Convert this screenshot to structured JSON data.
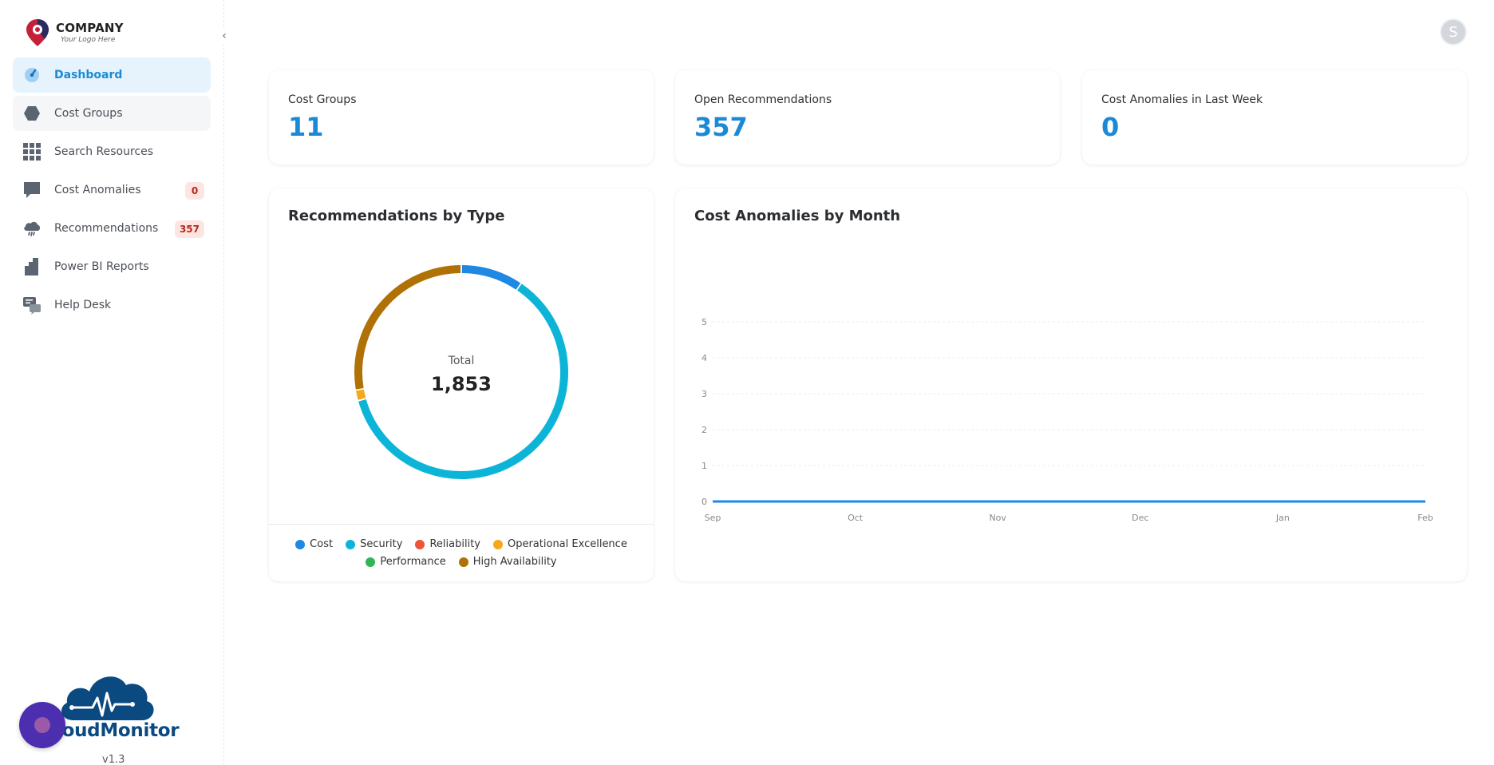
{
  "logo": {
    "name": "COMPANY",
    "tagline": "Your Logo Here"
  },
  "nav": {
    "items": [
      {
        "label": "Dashboard",
        "icon": "gauge-icon"
      },
      {
        "label": "Cost Groups",
        "icon": "hexagon-icon"
      },
      {
        "label": "Search Resources",
        "icon": "grid-icon"
      },
      {
        "label": "Cost Anomalies",
        "icon": "message-icon",
        "badge": "0"
      },
      {
        "label": "Recommendations",
        "icon": "cloud-icon",
        "badge": "357"
      },
      {
        "label": "Power BI Reports",
        "icon": "bar-chart-icon"
      },
      {
        "label": "Help Desk",
        "icon": "help-chat-icon"
      }
    ]
  },
  "brand": {
    "name": "loudMonitor",
    "version": "v1.3"
  },
  "user": {
    "initial": "S"
  },
  "stats": [
    {
      "title": "Cost Groups",
      "value": "11"
    },
    {
      "title": "Open Recommendations",
      "value": "357"
    },
    {
      "title": "Cost Anomalies in Last Week",
      "value": "0"
    }
  ],
  "colors": {
    "accent": "#1b8ad6",
    "cost": "#1e88e5",
    "security": "#0cb5d8",
    "reliability": "#ef5338",
    "operational_excellence": "#f6a81b",
    "performance": "#2fb552",
    "high_availability": "#b07106"
  },
  "chart_data": [
    {
      "type": "pie",
      "title": "Recommendations by Type",
      "center_label": "Total",
      "center_value": "1,853",
      "categories": [
        "Cost",
        "Security",
        "Reliability",
        "Operational Excellence",
        "Performance",
        "High Availability"
      ],
      "values": [
        175,
        1135,
        0,
        30,
        0,
        513
      ],
      "colors": [
        "#1e88e5",
        "#0cb5d8",
        "#ef5338",
        "#f6a81b",
        "#2fb552",
        "#b07106"
      ],
      "legend_position": "bottom"
    },
    {
      "type": "line",
      "title": "Cost Anomalies by Month",
      "x": [
        "Sep",
        "Oct",
        "Nov",
        "Dec",
        "Jan",
        "Feb"
      ],
      "series": [
        {
          "values": [
            0,
            0,
            0,
            0,
            0,
            0
          ]
        }
      ],
      "yticks": [
        "0",
        "1",
        "2",
        "3",
        "4",
        "5"
      ],
      "ylim": [
        0,
        5
      ],
      "grid": true,
      "line_color": "#1e88e5"
    }
  ]
}
